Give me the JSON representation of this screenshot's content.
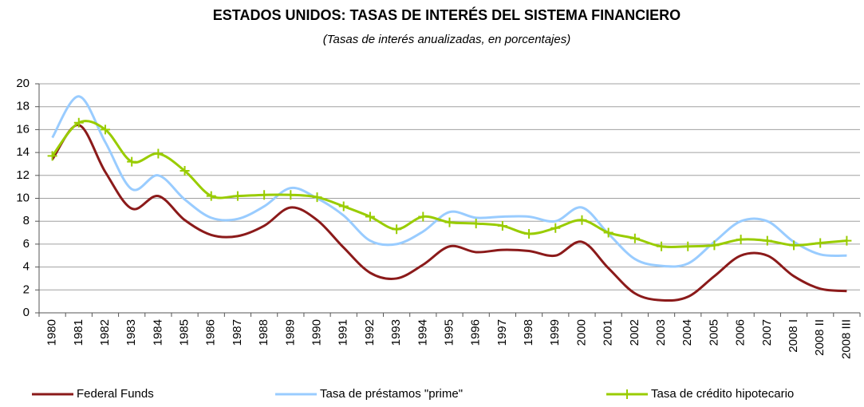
{
  "chart_data": {
    "type": "line",
    "title": "ESTADOS UNIDOS: TASAS DE INTERÉS DEL SISTEMA FINANCIERO",
    "subtitle": "(Tasas de interés anualizadas, en porcentajes)",
    "categories": [
      "1980",
      "1981",
      "1982",
      "1983",
      "1984",
      "1985",
      "1986",
      "1987",
      "1988",
      "1989",
      "1990",
      "1991",
      "1992",
      "1993",
      "1994",
      "1995",
      "1996",
      "1997",
      "1998",
      "1999",
      "2000",
      "2001",
      "2002",
      "2003",
      "2004",
      "2005",
      "2006",
      "2007",
      "2008 I",
      "2008 II",
      "2008 III"
    ],
    "series": [
      {
        "name": "Federal Funds",
        "color": "#8b1a1a",
        "values": [
          13.4,
          16.4,
          12.3,
          9.1,
          10.2,
          8.1,
          6.8,
          6.7,
          7.6,
          9.2,
          8.1,
          5.7,
          3.5,
          3.0,
          4.2,
          5.8,
          5.3,
          5.5,
          5.4,
          5.0,
          6.2,
          3.9,
          1.7,
          1.1,
          1.4,
          3.2,
          5.0,
          5.0,
          3.2,
          2.1,
          1.9
        ]
      },
      {
        "name": "Tasa de préstamos \"prime\"",
        "color": "#99ccff",
        "values": [
          15.3,
          18.9,
          14.9,
          10.8,
          12.0,
          9.9,
          8.3,
          8.2,
          9.3,
          10.9,
          10.0,
          8.5,
          6.3,
          6.0,
          7.1,
          8.8,
          8.3,
          8.4,
          8.4,
          8.0,
          9.2,
          6.9,
          4.7,
          4.1,
          4.3,
          6.2,
          8.0,
          8.0,
          6.2,
          5.1,
          5.0
        ]
      },
      {
        "name": "Tasa de crédito hipotecario",
        "color": "#99cc00",
        "marker": "+",
        "values": [
          13.7,
          16.6,
          16.0,
          13.2,
          13.9,
          12.4,
          10.2,
          10.2,
          10.3,
          10.3,
          10.1,
          9.3,
          8.4,
          7.3,
          8.4,
          7.9,
          7.8,
          7.6,
          6.9,
          7.4,
          8.1,
          7.0,
          6.5,
          5.8,
          5.8,
          5.9,
          6.4,
          6.3,
          5.9,
          6.1,
          6.3
        ]
      }
    ],
    "ylim": [
      0,
      20
    ],
    "yticks": [
      0,
      2,
      4,
      6,
      8,
      10,
      12,
      14,
      16,
      18,
      20
    ],
    "grid": true,
    "legend": "bottom"
  }
}
